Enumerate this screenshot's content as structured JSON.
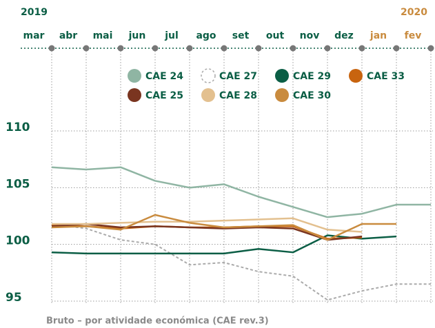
{
  "chart_data": {
    "type": "line",
    "years": [
      "2019",
      "2020"
    ],
    "year_colors": [
      "#0b5e45",
      "#c98b3e"
    ],
    "categories": [
      "mar",
      "abr",
      "mai",
      "jun",
      "jul",
      "ago",
      "set",
      "out",
      "nov",
      "dez",
      "jan",
      "fev"
    ],
    "category_colors": [
      "#0b5e45",
      "#0b5e45",
      "#0b5e45",
      "#0b5e45",
      "#0b5e45",
      "#0b5e45",
      "#0b5e45",
      "#0b5e45",
      "#0b5e45",
      "#0b5e45",
      "#c98b3e",
      "#c98b3e"
    ],
    "series": [
      {
        "name": "CAE 24",
        "color": "#8fb5a3",
        "values": [
          106.8,
          106.6,
          106.8,
          105.6,
          105.0,
          105.3,
          104.2,
          103.3,
          102.4,
          102.7,
          103.5,
          103.5
        ]
      },
      {
        "name": "CAE 27",
        "color": "#aaaaaa",
        "line_style": "dashed",
        "values": [
          101.8,
          101.4,
          100.4,
          100.0,
          98.2,
          98.4,
          97.6,
          97.2,
          95.1,
          95.9,
          96.5,
          96.5
        ]
      },
      {
        "name": "CAE 29",
        "color": "#0b5e45",
        "values": [
          99.3,
          99.2,
          99.2,
          99.2,
          99.2,
          99.2,
          99.6,
          99.3,
          100.8,
          100.5,
          100.7,
          null
        ]
      },
      {
        "name": "CAE 33",
        "color": "#c8640f",
        "values": [
          101.7,
          101.6,
          101.4,
          101.6,
          101.5,
          101.5,
          101.6,
          101.6,
          100.5,
          100.6,
          null,
          null
        ]
      },
      {
        "name": "CAE 25",
        "color": "#7a3520",
        "values": [
          101.6,
          101.8,
          101.5,
          101.6,
          101.5,
          101.4,
          101.5,
          101.4,
          100.4,
          100.7,
          null,
          null
        ]
      },
      {
        "name": "CAE 28",
        "color": "#e3c08f",
        "values": [
          101.8,
          101.8,
          101.9,
          102.0,
          102.0,
          102.1,
          102.2,
          102.3,
          101.3,
          101.1,
          null,
          null
        ]
      },
      {
        "name": "CAE 30",
        "color": "#c98b3e",
        "values": [
          101.5,
          101.6,
          101.3,
          102.6,
          101.9,
          101.5,
          101.6,
          101.7,
          100.4,
          101.8,
          101.8,
          null
        ]
      }
    ],
    "ylim": [
      95,
      110
    ],
    "yticks": [
      95,
      100,
      105,
      110
    ],
    "grid": true,
    "footer": "Bruto – por atividade económica (CAE rev.3)"
  }
}
